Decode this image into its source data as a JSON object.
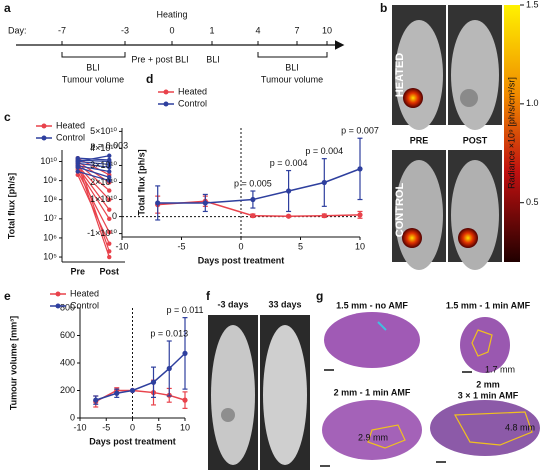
{
  "panel_labels": [
    "a",
    "b",
    "c",
    "d",
    "e",
    "f",
    "g"
  ],
  "timeline": {
    "day_label": "Day:",
    "days": [
      "-7",
      "-3",
      "0",
      "1",
      "4",
      "7",
      "10"
    ],
    "heating": "Heating",
    "labels": [
      "BLI",
      "Tumour volume",
      "Pre + post BLI",
      "BLI",
      "BLI",
      "Tumour volume"
    ]
  },
  "imaging": {
    "rows": [
      "HEATED",
      "CONTROL"
    ],
    "columns": [
      "PRE",
      "POST"
    ],
    "colorbar": {
      "label": "Radiance ×10⁹ [ph/s/cm²/sr]",
      "lim": [
        0.2,
        1.5
      ],
      "ticks": [
        {
          "value": 1.5,
          "label": "1.5"
        },
        {
          "value": 1.0,
          "label": "1.0"
        },
        {
          "value": 0.5,
          "label": "0.5"
        }
      ]
    }
  },
  "chart_data": [
    {
      "type": "paired",
      "ylabel": "Total flux [ph/s]",
      "categories": [
        "Pre",
        "Post"
      ],
      "log": true,
      "ylim": [
        55000,
        40000000000
      ],
      "yticks": [
        {
          "value": 100000,
          "label": "10⁵"
        },
        {
          "value": 1000000,
          "label": "10⁶"
        },
        {
          "value": 10000000,
          "label": "10⁷"
        },
        {
          "value": 100000000,
          "label": "10⁸"
        },
        {
          "value": 1000000000,
          "label": "10⁹"
        },
        {
          "value": 10000000000,
          "label": "10¹⁰"
        }
      ],
      "series": [
        {
          "name": "Heated",
          "color": "#e8424b",
          "values": [
            [
              15000000000,
              2000000000
            ],
            [
              10000000000,
              800000000
            ],
            [
              8000000000,
              300000000
            ],
            [
              6000000000,
              100000000
            ],
            [
              5000000000,
              30000000
            ],
            [
              4000000000,
              10000000
            ],
            [
              3000000000,
              2000000
            ],
            [
              2000000000,
              500000
            ],
            [
              12000000000,
              200000
            ],
            [
              7000000000,
              100000
            ]
          ]
        },
        {
          "name": "Control",
          "color": "#2e3f9e",
          "values": [
            [
              15000000000,
              12000000000
            ],
            [
              12000000000,
              10000000000
            ],
            [
              10000000000,
              7000000000
            ],
            [
              8000000000,
              5000000000
            ],
            [
              6000000000,
              3000000000
            ],
            [
              5000000000,
              1500000000
            ],
            [
              3000000000,
              1000000000
            ],
            [
              10000000000,
              20000000000
            ]
          ]
        }
      ],
      "annotations": [
        {
          "text": "p = 0.003"
        }
      ]
    },
    {
      "type": "line",
      "ylabel": "Total flux [ph/s]",
      "xlabel": "Days post treatment",
      "xlim": [
        -10,
        10
      ],
      "xticks": [
        -10,
        -5,
        0,
        5,
        10
      ],
      "ylim": [
        -12000000000,
        52000000000
      ],
      "yticks": [
        {
          "value": -10000000000,
          "label": "-1×10¹⁰"
        },
        0,
        {
          "value": 10000000000,
          "label": "1×10¹⁰"
        },
        {
          "value": 20000000000,
          "label": "2×10¹⁰"
        },
        {
          "value": 30000000000,
          "label": "3×10¹⁰"
        },
        {
          "value": 40000000000,
          "label": "4×10¹⁰"
        },
        {
          "value": 50000000000,
          "label": "5×10¹⁰"
        }
      ],
      "vlines": [
        0
      ],
      "hlines": [
        0
      ],
      "series": [
        {
          "name": "Heated",
          "color": "#e8424b",
          "x": [
            -7,
            -3,
            1,
            4,
            7,
            10
          ],
          "values": [
            7000000000,
            9000000000,
            500000000,
            200000000,
            500000000,
            1000000000
          ],
          "errors": [
            5000000000,
            3000000000,
            1000000000,
            500000000,
            1000000000,
            2000000000
          ]
        },
        {
          "name": "Control",
          "color": "#2e3f9e",
          "x": [
            -7,
            -3,
            1,
            4,
            7,
            10
          ],
          "values": [
            8000000000,
            8000000000,
            10000000000,
            15000000000,
            20000000000,
            28000000000
          ],
          "errors": [
            10000000000,
            5000000000,
            5000000000,
            12000000000,
            14000000000,
            18000000000
          ]
        }
      ],
      "annotations": [
        {
          "x": 1,
          "text": "p = 0.005"
        },
        {
          "x": 4,
          "text": "p = 0.004"
        },
        {
          "x": 7,
          "text": "p = 0.004"
        },
        {
          "x": 10,
          "text": "p = 0.007"
        }
      ]
    },
    {
      "type": "line",
      "ylabel": "Tumour volume [mm³]",
      "xlabel": "Days post treatment",
      "xlim": [
        -10,
        10
      ],
      "xticks": [
        -10,
        -5,
        0,
        5,
        10
      ],
      "ylim": [
        0,
        800
      ],
      "yticks": [
        0,
        200,
        400,
        600,
        800
      ],
      "vlines": [
        0
      ],
      "series": [
        {
          "name": "Heated",
          "color": "#e8424b",
          "x": [
            -7,
            -3,
            0,
            4,
            7,
            10
          ],
          "values": [
            120,
            200,
            200,
            185,
            165,
            130
          ],
          "errors": [
            40,
            20,
            null,
            90,
            50,
            60
          ]
        },
        {
          "name": "Control",
          "color": "#2e3f9e",
          "x": [
            -7,
            -3,
            0,
            4,
            7,
            10
          ],
          "values": [
            130,
            180,
            200,
            260,
            360,
            470
          ],
          "errors": [
            30,
            30,
            null,
            110,
            200,
            260
          ]
        }
      ],
      "annotations": [
        {
          "x": 7,
          "text": "p = 0.013"
        },
        {
          "x": 10,
          "text": "p = 0.011"
        }
      ]
    }
  ],
  "follow_up": {
    "columns": [
      "-3 days",
      "33 days"
    ]
  },
  "histology": {
    "captions": [
      "1.5 mm - no AMF",
      "1.5 mm - 1 min AMF",
      "2 mm - 1 min AMF",
      "2 mm",
      "3 × 1 min AMF"
    ],
    "measurements": [
      "1.7 mm",
      "2.9 mm",
      "4.8 mm"
    ]
  }
}
